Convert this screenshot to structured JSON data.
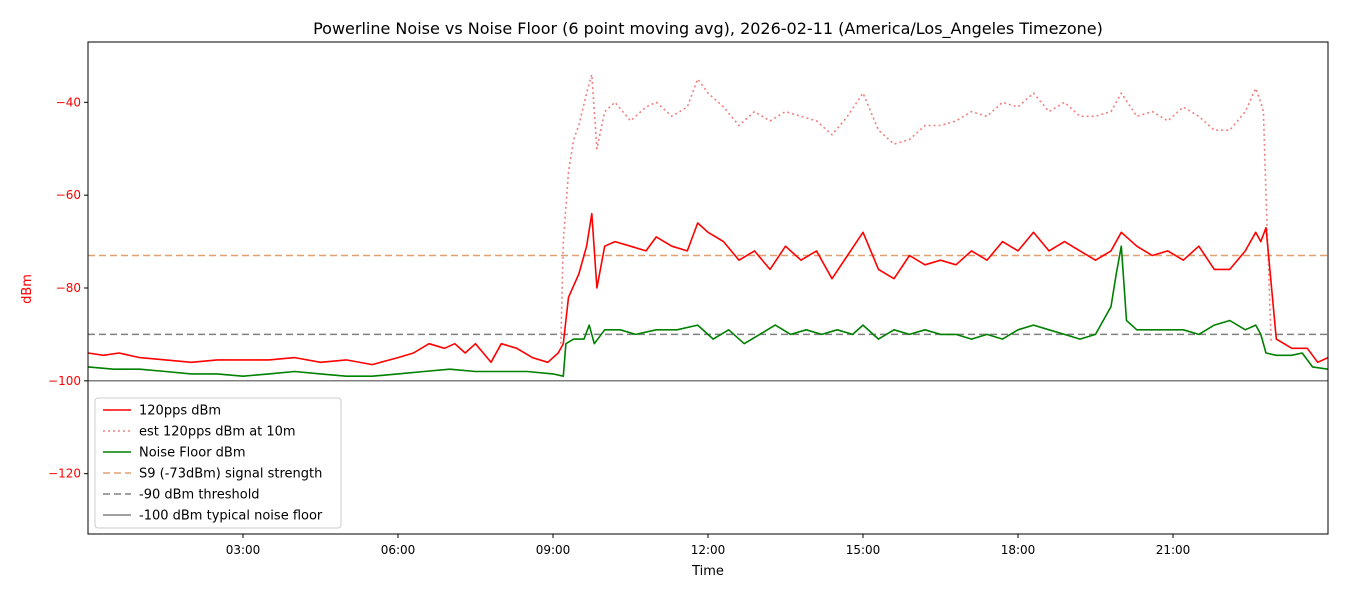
{
  "chart_data": {
    "type": "line",
    "title": "Powerline Noise vs Noise Floor (6 point moving avg), 2026-02-11 (America/Los_Angeles Timezone)",
    "xlabel": "Time",
    "ylabel": "dBm",
    "xlim": [
      0,
      24
    ],
    "ylim": [
      -133,
      -27
    ],
    "x_ticks": [
      {
        "value": 3,
        "label": "03:00"
      },
      {
        "value": 6,
        "label": "06:00"
      },
      {
        "value": 9,
        "label": "09:00"
      },
      {
        "value": 12,
        "label": "12:00"
      },
      {
        "value": 15,
        "label": "15:00"
      },
      {
        "value": 18,
        "label": "18:00"
      },
      {
        "value": 21,
        "label": "21:00"
      }
    ],
    "y_ticks": [
      {
        "value": -40,
        "label": "−40"
      },
      {
        "value": -60,
        "label": "−60"
      },
      {
        "value": -80,
        "label": "−80"
      },
      {
        "value": -100,
        "label": "−100"
      },
      {
        "value": -120,
        "label": "−120"
      }
    ],
    "grid": false,
    "legend_position": "lower-left",
    "colors": {
      "series_120pps": "#ff0000",
      "series_est": "#f08080",
      "series_noise": "#008000",
      "line_s9": "#e0a070",
      "line_90": "#808080",
      "line_100": "#808080",
      "ylabel_color": "#ff0000"
    },
    "series": [
      {
        "name": "120pps dBm",
        "style": "solid",
        "x": [
          0.0,
          0.3,
          0.6,
          1.0,
          1.5,
          2.0,
          2.5,
          3.0,
          3.5,
          4.0,
          4.5,
          5.0,
          5.5,
          6.0,
          6.3,
          6.6,
          6.9,
          7.1,
          7.3,
          7.5,
          7.8,
          8.0,
          8.3,
          8.6,
          8.9,
          9.1,
          9.2,
          9.3,
          9.5,
          9.65,
          9.75,
          9.85,
          10.0,
          10.2,
          10.5,
          10.8,
          11.0,
          11.3,
          11.6,
          11.8,
          12.0,
          12.3,
          12.6,
          12.9,
          13.2,
          13.5,
          13.8,
          14.1,
          14.4,
          14.7,
          15.0,
          15.3,
          15.6,
          15.9,
          16.2,
          16.5,
          16.8,
          17.1,
          17.4,
          17.7,
          18.0,
          18.3,
          18.6,
          18.9,
          19.2,
          19.5,
          19.8,
          20.0,
          20.3,
          20.6,
          20.9,
          21.2,
          21.5,
          21.8,
          22.1,
          22.4,
          22.6,
          22.7,
          22.8,
          23.0,
          23.3,
          23.6,
          23.8,
          24.0
        ],
        "y": [
          -94,
          -94.5,
          -94,
          -95,
          -95.5,
          -96,
          -95.5,
          -95.5,
          -95.5,
          -95,
          -96,
          -95.5,
          -96.5,
          -95,
          -94,
          -92,
          -93,
          -92,
          -94,
          -92,
          -96,
          -92,
          -93,
          -95,
          -96,
          -94,
          -92,
          -82,
          -77,
          -71,
          -64,
          -80,
          -71,
          -70,
          -71,
          -72,
          -69,
          -71,
          -72,
          -66,
          -68,
          -70,
          -74,
          -72,
          -76,
          -71,
          -74,
          -72,
          -78,
          -73,
          -68,
          -76,
          -78,
          -73,
          -75,
          -74,
          -75,
          -72,
          -74,
          -70,
          -72,
          -68,
          -72,
          -70,
          -72,
          -74,
          -72,
          -68,
          -71,
          -73,
          -72,
          -74,
          -71,
          -76,
          -76,
          -72,
          -68,
          -70,
          -67,
          -91,
          -93,
          -93,
          -96,
          -95
        ]
      },
      {
        "name": "est 120pps dBm at 10m",
        "style": "dotted",
        "x": [
          0.0,
          9.0,
          9.15,
          9.2,
          9.3,
          9.4,
          9.5,
          9.65,
          9.75,
          9.85,
          10.0,
          10.2,
          10.5,
          10.8,
          11.0,
          11.3,
          11.6,
          11.8,
          12.0,
          12.3,
          12.6,
          12.9,
          13.2,
          13.5,
          13.8,
          14.1,
          14.4,
          14.7,
          15.0,
          15.3,
          15.6,
          15.9,
          16.2,
          16.5,
          16.8,
          17.1,
          17.4,
          17.7,
          18.0,
          18.3,
          18.6,
          18.9,
          19.2,
          19.5,
          19.8,
          20.0,
          20.3,
          20.6,
          20.9,
          21.2,
          21.5,
          21.8,
          22.1,
          22.4,
          22.6,
          22.7,
          22.75,
          22.8,
          22.9
        ],
        "y": [
          null,
          null,
          -92,
          -70,
          -55,
          -48,
          -45,
          -38,
          -34,
          -50,
          -42,
          -40,
          -44,
          -41,
          -40,
          -43,
          -41,
          -35,
          -38,
          -41,
          -45,
          -42,
          -44,
          -42,
          -43,
          -44,
          -47,
          -43,
          -38,
          -46,
          -49,
          -48,
          -45,
          -45,
          -44,
          -42,
          -43,
          -40,
          -41,
          -38,
          -42,
          -40,
          -43,
          -43,
          -42,
          -38,
          -43,
          -42,
          -44,
          -41,
          -43,
          -46,
          -46,
          -42,
          -37,
          -40,
          -42,
          -60,
          -92
        ]
      },
      {
        "name": "Noise Floor dBm",
        "style": "solid",
        "x": [
          0.0,
          0.5,
          1.0,
          1.5,
          2.0,
          2.5,
          3.0,
          3.5,
          4.0,
          4.5,
          5.0,
          5.5,
          6.0,
          6.5,
          7.0,
          7.5,
          8.0,
          8.5,
          9.0,
          9.2,
          9.25,
          9.4,
          9.6,
          9.7,
          9.8,
          10.0,
          10.3,
          10.6,
          11.0,
          11.4,
          11.8,
          12.1,
          12.4,
          12.7,
          13.0,
          13.3,
          13.6,
          13.9,
          14.2,
          14.5,
          14.8,
          15.0,
          15.3,
          15.6,
          15.9,
          16.2,
          16.5,
          16.8,
          17.1,
          17.4,
          17.7,
          18.0,
          18.3,
          18.6,
          18.9,
          19.2,
          19.5,
          19.8,
          19.9,
          20.0,
          20.1,
          20.3,
          20.6,
          20.9,
          21.2,
          21.5,
          21.8,
          22.1,
          22.4,
          22.6,
          22.7,
          22.8,
          23.0,
          23.3,
          23.5,
          23.7,
          24.0
        ],
        "y": [
          -97,
          -97.5,
          -97.5,
          -98,
          -98.5,
          -98.5,
          -99,
          -98.5,
          -98,
          -98.5,
          -99,
          -99,
          -98.5,
          -98,
          -97.5,
          -98,
          -98,
          -98,
          -98.5,
          -99,
          -92,
          -91,
          -91,
          -88,
          -92,
          -89,
          -89,
          -90,
          -89,
          -89,
          -88,
          -91,
          -89,
          -92,
          -90,
          -88,
          -90,
          -89,
          -90,
          -89,
          -90,
          -88,
          -91,
          -89,
          -90,
          -89,
          -90,
          -90,
          -91,
          -90,
          -91,
          -89,
          -88,
          -89,
          -90,
          -91,
          -90,
          -84,
          -77,
          -71,
          -87,
          -89,
          -89,
          -89,
          -89,
          -90,
          -88,
          -87,
          -89,
          -88,
          -90,
          -94,
          -94.5,
          -94.5,
          -94,
          -97,
          -97.5
        ]
      },
      {
        "name": "S9 (-73dBm) signal strength",
        "style": "dashed",
        "x": [
          0,
          24
        ],
        "y": [
          -73,
          -73
        ]
      },
      {
        "name": "-90 dBm threshold",
        "style": "dashed",
        "x": [
          0,
          24
        ],
        "y": [
          -90,
          -90
        ]
      },
      {
        "name": "-100 dBm typical noise floor",
        "style": "solid",
        "x": [
          0,
          24
        ],
        "y": [
          -100,
          -100
        ]
      }
    ]
  }
}
